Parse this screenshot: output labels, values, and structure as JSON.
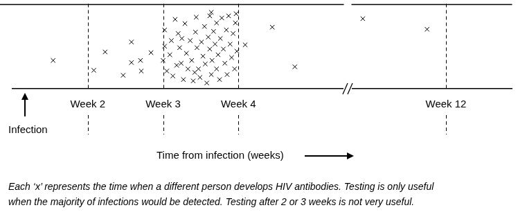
{
  "chart_data": [
    {
      "type": "scatter",
      "xlabel": "Time from infection (weeks)",
      "annotations": [
        "Infection"
      ],
      "marker": "x",
      "color": "#000000",
      "tick_labels": "x",
      "xlim": [
        1,
        5.4
      ],
      "ylim": [
        0,
        10
      ],
      "xticks": [
        {
          "value": 2,
          "label": "Week 2"
        },
        {
          "value": 3,
          "label": "Week 3"
        },
        {
          "value": 4,
          "label": "Week 4"
        }
      ],
      "x": [
        1.54,
        2.08,
        2.23,
        2.58,
        2.58,
        2.7,
        2.71,
        2.47,
        2.84,
        3.02,
        3.02,
        3.0,
        3.05,
        3.09,
        3.13,
        3.16,
        3.2,
        3.22,
        3.24,
        3.27,
        3.29,
        3.31,
        3.33,
        3.36,
        3.38,
        3.4,
        3.43,
        3.44,
        3.45,
        3.47,
        3.49,
        3.51,
        3.53,
        3.55,
        3.56,
        3.58,
        3.6,
        3.62,
        3.62,
        3.64,
        3.65,
        3.67,
        3.69,
        3.71,
        3.71,
        3.73,
        3.75,
        3.76,
        3.78,
        3.8,
        3.82,
        3.84,
        3.85,
        3.87,
        3.89,
        3.91,
        3.93,
        3.95,
        3.96,
        3.98,
        3.97,
        3.25,
        3.11,
        3.18,
        3.42,
        3.64,
        4.09,
        4.45,
        4.75
      ],
      "values": [
        3.33,
        2.17,
        4.33,
        5.5,
        3.08,
        3.33,
        2.08,
        1.58,
        4.25,
        6.92,
        5.0,
        3.33,
        2.08,
        4.0,
        1.5,
        8.17,
        6.5,
        4.83,
        3.0,
        1.08,
        7.67,
        4.17,
        2.33,
        5.67,
        3.33,
        0.92,
        6.67,
        8.42,
        4.83,
        2.33,
        1.33,
        5.5,
        3.83,
        7.33,
        2.92,
        0.67,
        6.08,
        8.58,
        4.67,
        1.67,
        3.33,
        6.75,
        5.25,
        7.75,
        2.33,
        4.0,
        1.08,
        5.92,
        8.33,
        4.67,
        3.0,
        6.92,
        1.67,
        8.58,
        5.25,
        3.67,
        6.5,
        2.33,
        7.75,
        4.42,
        8.83,
        5.92,
        5.67,
        2.75,
        1.92,
        9.0,
        5.17,
        7.25,
        2.58
      ]
    },
    {
      "type": "scatter",
      "marker": "x",
      "color": "#000000",
      "tick_labels": "x",
      "xlim": [
        10,
        13.4
      ],
      "ylim": [
        0,
        10
      ],
      "xticks": [
        {
          "value": 12,
          "label": "Week 12"
        }
      ],
      "x": [
        10.24,
        11.6
      ],
      "values": [
        8.25,
        7.0
      ]
    }
  ],
  "caption": [
    "Each ‘x’ represents the time when a different person develops HIV antibodies. Testing is only useful",
    "when the majority of infections would be detected. Testing after 2 or 3 weeks is not very useful."
  ]
}
